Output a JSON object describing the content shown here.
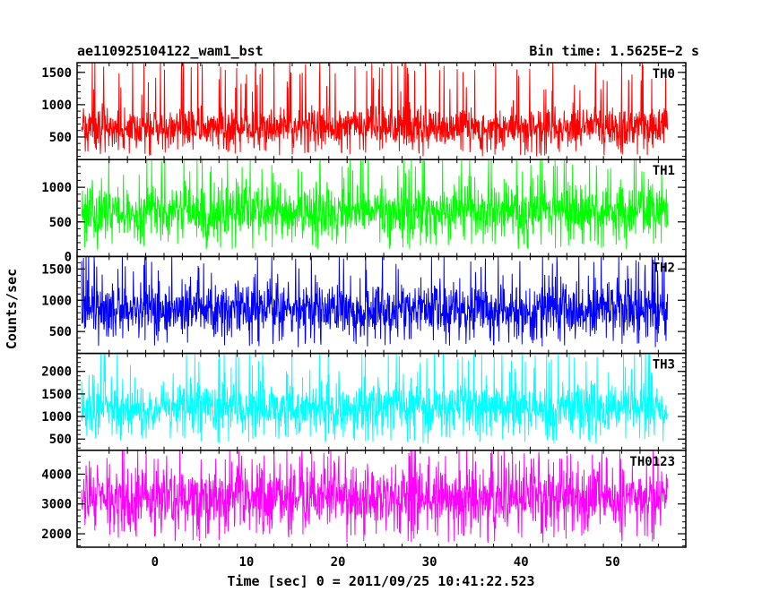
{
  "header": {
    "title": "ae110925104122_wam1_bst",
    "bin_time": "Bin time: 1.5625E−2 s"
  },
  "chart_data": {
    "type": "line",
    "title": "ae110925104122_wam1_bst",
    "subtitle": "Bin time: 1.5625E−2 s",
    "xlabel": "Time [sec] 0 = 2011/09/25 10:41:22.523",
    "ylabel": "Counts/sec",
    "xlim": [
      -8.5,
      58
    ],
    "data_xrange": [
      -8,
      56
    ],
    "bin_time": 0.015625,
    "x_ticks": [
      0,
      10,
      20,
      30,
      40,
      50
    ],
    "x_tick_labels": [
      "0",
      "10",
      "20",
      "30",
      "40",
      "50"
    ],
    "panels": [
      {
        "name": "TH0",
        "color": "#ff0000",
        "ylim": [
          150,
          1650
        ],
        "y_ticks": [
          500,
          1000,
          1500
        ],
        "y_tick_labels": [
          "500",
          "1000",
          "1500"
        ],
        "mean": 650,
        "min": 200,
        "max": 1650
      },
      {
        "name": "TH1",
        "color": "#00ff00",
        "ylim": [
          0,
          1400
        ],
        "y_ticks": [
          0,
          500,
          1000
        ],
        "y_tick_labels": [
          "0",
          "500",
          "1000"
        ],
        "mean": 650,
        "min": 100,
        "max": 1400
      },
      {
        "name": "TH2",
        "color": "#0000ff",
        "ylim": [
          150,
          1700
        ],
        "y_ticks": [
          500,
          1000,
          1500
        ],
        "y_tick_labels": [
          "500",
          "1000",
          "1500"
        ],
        "mean": 850,
        "min": 250,
        "max": 1700
      },
      {
        "name": "TH3",
        "color": "#00ffff",
        "ylim": [
          250,
          2400
        ],
        "y_ticks": [
          500,
          1000,
          1500,
          2000
        ],
        "y_tick_labels": [
          "500",
          "1000",
          "1500",
          "2000"
        ],
        "mean": 1200,
        "min": 400,
        "max": 2400
      },
      {
        "name": "TH0123",
        "color": "#ff00ff",
        "ylim": [
          1550,
          4800
        ],
        "y_ticks": [
          2000,
          3000,
          4000
        ],
        "y_tick_labels": [
          "2000",
          "3000",
          "4000"
        ],
        "mean": 3200,
        "min": 1700,
        "max": 4800
      }
    ],
    "grid": false,
    "legend": "none"
  }
}
